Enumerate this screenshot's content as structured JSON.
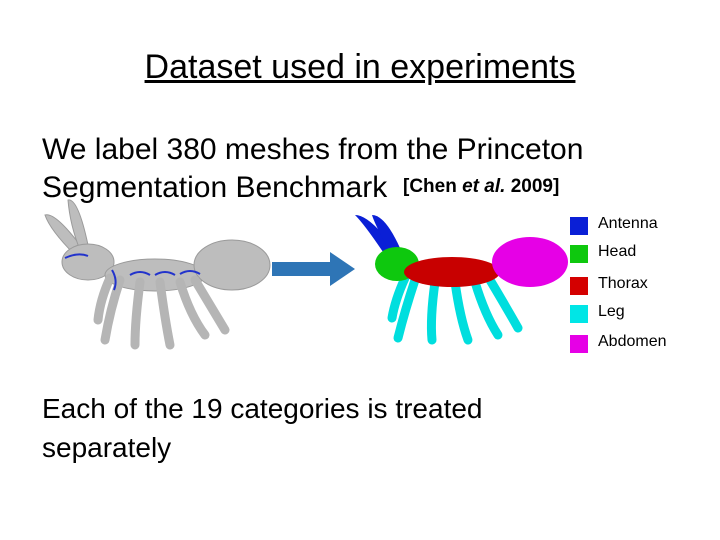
{
  "slide": {
    "title": "Dataset used in experiments",
    "body": {
      "lines": [
        "We label 380 meshes from the Princeton",
        "Segmentation Benchmark"
      ],
      "citation": {
        "open": "[Chen ",
        "etal": "et al.",
        "close": " 2009]"
      }
    },
    "legend": [
      {
        "label": "Antenna",
        "color": "#0a1fd6"
      },
      {
        "label": "Head",
        "color": "#0ec80e"
      },
      {
        "label": "Thorax",
        "color": "#d40000"
      },
      {
        "label": "Leg",
        "color": "#00e6e6"
      },
      {
        "label": "Abdomen",
        "color": "#e600e6"
      }
    ],
    "footer": {
      "lines": [
        "Each of the 19 categories is treated",
        "separately"
      ]
    }
  }
}
